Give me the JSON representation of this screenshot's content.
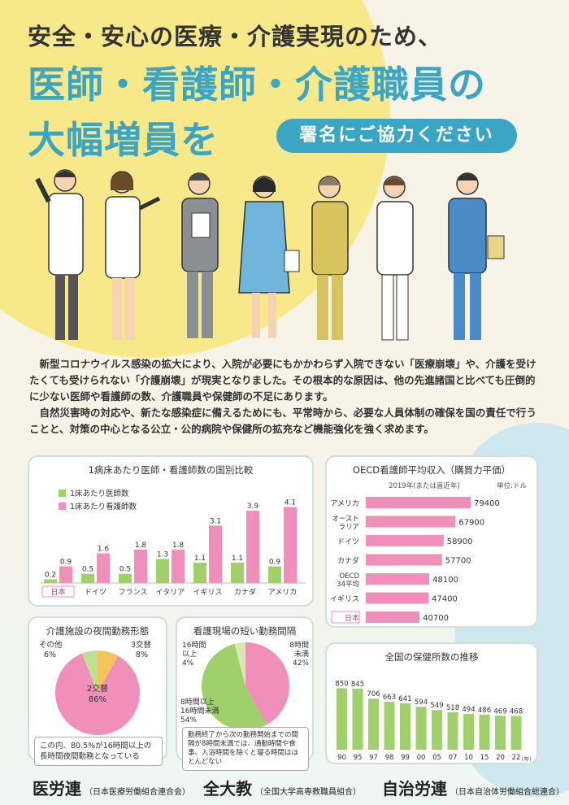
{
  "header": {
    "line1": "安全・安心の医療・介護実現のため、",
    "line2": "医師・看護師・介護職員の",
    "line3": "大幅増員を",
    "petition": "署名にご協力ください"
  },
  "intro": {
    "p1": "新型コロナウイルス感染の拡大により、入院が必要にもかかわらず入院できない「医療崩壊」や、介護を受けたくても受けられない「介護崩壊」が現実となりました。その根本的な原因は、他の先進諸国と比べても圧倒的に少ない医師や看護師の数、介護職員や保健師の不足にあります。",
    "p2": "自然災害時の対応や、新たな感染症に備えるためにも、平常時から、必要な人員体制の確保を国の責任で行うことと、対策の中心となる公立・公的病院や保健所の拡充など機能強化を強く求めます。"
  },
  "colors": {
    "green": "#9fd06a",
    "pink": "#f08fb9",
    "teal": "#3aa5c4"
  },
  "chart_data": [
    {
      "type": "bar",
      "title": "1病床あたり医師・看護師数の国別比較",
      "categories": [
        "日本",
        "ドイツ",
        "フランス",
        "イタリア",
        "イギリス",
        "カナダ",
        "アメリカ"
      ],
      "series": [
        {
          "name": "1床あたり医師数",
          "values": [
            0.2,
            0.5,
            0.5,
            1.3,
            1.1,
            1.1,
            0.9
          ]
        },
        {
          "name": "1床あたり看護師数",
          "values": [
            0.9,
            1.6,
            1.8,
            1.8,
            3.1,
            3.9,
            4.1
          ]
        }
      ],
      "data_labels": {
        "doctors": [
          "0.2",
          "0.5",
          "0.5",
          "1.3",
          "1.1",
          "1.1",
          "0.9"
        ],
        "nurses": [
          "0.9",
          "1.6",
          "1.8",
          "1.8",
          "3.1",
          "3.9",
          "4.1"
        ]
      },
      "ylim": [
        0,
        4.3
      ]
    },
    {
      "type": "bar",
      "orientation": "horizontal",
      "title": "OECD看護師平均収入（購買力平価）",
      "subtitle": "2019年(または直近年)",
      "unit": "単位:ドル",
      "categories": [
        "アメリカ",
        "オースト ラリア",
        "ドイツ",
        "カナダ",
        "OECD 34平均",
        "イギリス",
        "日本"
      ],
      "values": [
        79400,
        67900,
        58900,
        57700,
        48100,
        47400,
        40700
      ],
      "value_labels": [
        "79400",
        "67900",
        "58900",
        "57700",
        "48100",
        "47400",
        "40700"
      ],
      "xlim": [
        0,
        80000
      ]
    },
    {
      "type": "pie",
      "title": "介護施設の夜間勤務形態",
      "labels": [
        "2交替",
        "3交替",
        "その他"
      ],
      "values": [
        86,
        8,
        6
      ],
      "value_labels": [
        "86%",
        "8%",
        "6%"
      ],
      "note": "この内、80.5%が16時間以上の長時間夜間勤務となっている"
    },
    {
      "type": "pie",
      "title": "看護現場の短い勤務間隔",
      "labels": [
        "8時間未満",
        "8時間以上 16時間未満",
        "16時間以上"
      ],
      "values": [
        42,
        54,
        4
      ],
      "value_labels": [
        "42%",
        "54%",
        "4%"
      ],
      "note": "勤務終了から次の勤務開始までの間隔が8時間未満では、通勤時間や食事、入浴時間を除くと寝る時間はほとんどない"
    },
    {
      "type": "bar",
      "title": "全国の保健所数の推移",
      "categories": [
        "90",
        "95",
        "97",
        "98",
        "99",
        "00",
        "05",
        "07",
        "10",
        "15",
        "20",
        "22"
      ],
      "values": [
        850,
        845,
        706,
        663,
        641,
        594,
        549,
        518,
        494,
        486,
        469,
        468
      ],
      "value_labels": [
        "850",
        "845",
        "706",
        "663",
        "641",
        "594",
        "549",
        "518",
        "494",
        "486",
        "469",
        "468"
      ],
      "x_unit": "(年)",
      "ylim": [
        0,
        900
      ]
    }
  ],
  "charts_text": {
    "c1_japan": "日本",
    "c2_japan": "日本",
    "pie1_main_label": "2交替",
    "pie1_main_value": "86%",
    "pie1_other_label": "その他",
    "pie1_other_value": "6%",
    "pie1_third_label": "3交替",
    "pie1_third_value": "8%",
    "pie2_a_label": "16時間",
    "pie2_a_label2": "以上",
    "pie2_a_value": "4%",
    "pie2_b_label": "8時間",
    "pie2_b_label2": "未満",
    "pie2_b_value": "42%",
    "pie2_c_label": "8時間以上",
    "pie2_c_label2": "16時間未満",
    "pie2_c_value": "54%"
  },
  "footer": {
    "org1": "医労連",
    "org1_full": "（日本医療労働組合連合会）",
    "org2": "全大教",
    "org2_full": "（全国大学高専教職員組合）",
    "org3": "自治労連",
    "org3_full": "（日本自治体労働組合総連合）"
  }
}
